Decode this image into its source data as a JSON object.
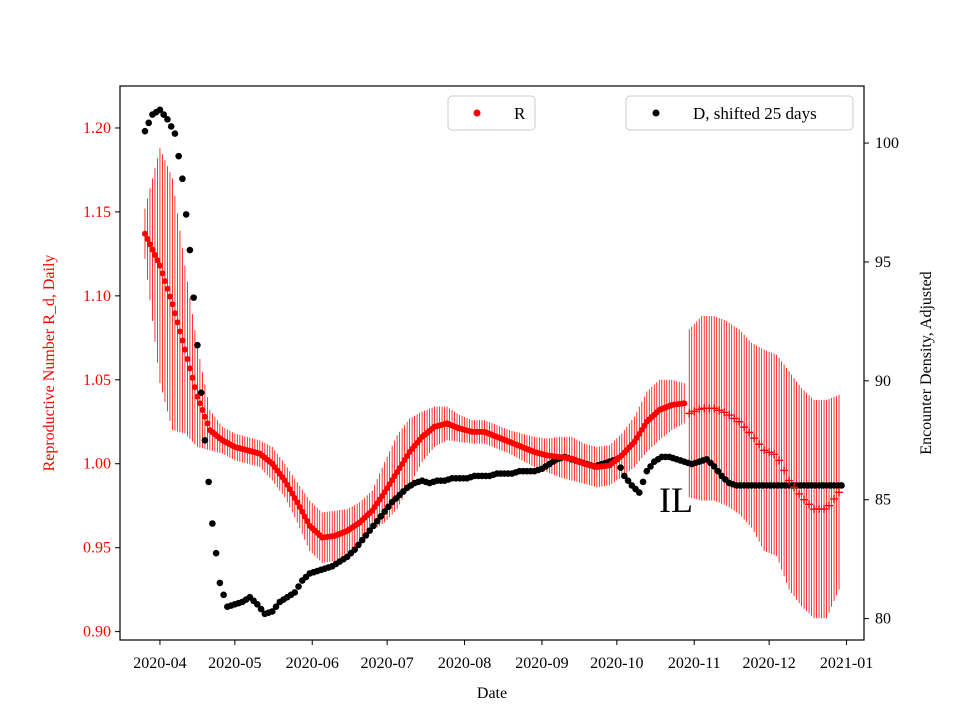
{
  "chart_data": {
    "type": "scatter",
    "xlabel": "Date",
    "ylabel_left": "Reproductive Number R_d, Daily",
    "ylabel_right": "Encounter Density, Adjusted",
    "annotation": "IL",
    "x_range": [
      "2020-03-16",
      "2021-01-08"
    ],
    "ylim_left": [
      0.895,
      1.225
    ],
    "ylim_right": [
      79.1,
      102.4
    ],
    "x_ticks": [
      "2020-04",
      "2020-05",
      "2020-06",
      "2020-07",
      "2020-08",
      "2020-09",
      "2020-10",
      "2020-11",
      "2020-12",
      "2021-01"
    ],
    "y_ticks_left": [
      "0.90",
      "0.95",
      "1.00",
      "1.05",
      "1.10",
      "1.15",
      "1.20"
    ],
    "y_ticks_right": [
      "80",
      "85",
      "90",
      "95",
      "100"
    ],
    "colors": {
      "R": "#ff0000",
      "D": "#000000"
    },
    "series": [
      {
        "name": "R",
        "axis": "left",
        "marker": "dot",
        "points": [
          [
            "2020-03-26",
            1.137,
            0.015
          ],
          [
            "2020-04-01",
            1.118,
            0.07
          ],
          [
            "2020-04-06",
            1.095,
            0.075
          ],
          [
            "2020-04-11",
            1.068,
            0.05
          ],
          [
            "2020-04-16",
            1.04,
            0.03
          ],
          [
            "2020-04-21",
            1.02,
            0.012
          ],
          [
            "2020-04-26",
            1.014,
            0.008
          ],
          [
            "2020-05-01",
            1.01,
            0.008
          ],
          [
            "2020-05-06",
            1.008,
            0.008
          ],
          [
            "2020-05-11",
            1.006,
            0.008
          ],
          [
            "2020-05-16",
            1.0,
            0.01
          ],
          [
            "2020-05-21",
            0.99,
            0.01
          ],
          [
            "2020-05-26",
            0.977,
            0.012
          ],
          [
            "2020-05-31",
            0.963,
            0.015
          ],
          [
            "2020-06-05",
            0.956,
            0.015
          ],
          [
            "2020-06-10",
            0.957,
            0.015
          ],
          [
            "2020-06-15",
            0.96,
            0.013
          ],
          [
            "2020-06-20",
            0.965,
            0.012
          ],
          [
            "2020-06-25",
            0.972,
            0.012
          ],
          [
            "2020-06-30",
            0.983,
            0.018
          ],
          [
            "2020-07-05",
            0.995,
            0.022
          ],
          [
            "2020-07-10",
            1.007,
            0.02
          ],
          [
            "2020-07-15",
            1.016,
            0.015
          ],
          [
            "2020-07-20",
            1.022,
            0.012
          ],
          [
            "2020-07-25",
            1.024,
            0.01
          ],
          [
            "2020-07-30",
            1.021,
            0.008
          ],
          [
            "2020-08-04",
            1.019,
            0.007
          ],
          [
            "2020-08-09",
            1.019,
            0.007
          ],
          [
            "2020-08-14",
            1.016,
            0.007
          ],
          [
            "2020-08-19",
            1.013,
            0.007
          ],
          [
            "2020-08-24",
            1.01,
            0.008
          ],
          [
            "2020-08-29",
            1.007,
            0.009
          ],
          [
            "2020-09-03",
            1.005,
            0.01
          ],
          [
            "2020-09-08",
            1.004,
            0.012
          ],
          [
            "2020-09-13",
            1.003,
            0.013
          ],
          [
            "2020-09-18",
            1.0,
            0.012
          ],
          [
            "2020-09-23",
            0.998,
            0.012
          ],
          [
            "2020-09-28",
            0.999,
            0.012
          ],
          [
            "2020-10-03",
            1.005,
            0.013
          ],
          [
            "2020-10-08",
            1.013,
            0.015
          ],
          [
            "2020-10-13",
            1.025,
            0.018
          ],
          [
            "2020-10-18",
            1.032,
            0.018
          ],
          [
            "2020-10-23",
            1.035,
            0.015
          ],
          [
            "2020-10-28",
            1.036,
            0.012
          ]
        ]
      },
      {
        "name": "R",
        "axis": "left",
        "marker": "plus",
        "points": [
          [
            "2020-10-30",
            1.03,
            0.05
          ],
          [
            "2020-11-04",
            1.033,
            0.055
          ],
          [
            "2020-11-09",
            1.033,
            0.055
          ],
          [
            "2020-11-14",
            1.03,
            0.055
          ],
          [
            "2020-11-19",
            1.025,
            0.055
          ],
          [
            "2020-11-24",
            1.017,
            0.055
          ],
          [
            "2020-11-29",
            1.008,
            0.06
          ],
          [
            "2020-12-04",
            1.005,
            0.06
          ],
          [
            "2020-12-09",
            0.99,
            0.065
          ],
          [
            "2020-12-14",
            0.98,
            0.065
          ],
          [
            "2020-12-19",
            0.973,
            0.065
          ],
          [
            "2020-12-24",
            0.973,
            0.065
          ],
          [
            "2020-12-29",
            0.983,
            0.058
          ]
        ]
      },
      {
        "name": "D, shifted 25 days",
        "axis": "right",
        "marker": "dot",
        "points": [
          [
            "2020-03-26",
            100.5
          ],
          [
            "2020-03-29",
            101.2
          ],
          [
            "2020-04-01",
            101.4
          ],
          [
            "2020-04-04",
            101.0
          ],
          [
            "2020-04-07",
            100.4
          ],
          [
            "2020-04-10",
            98.5
          ],
          [
            "2020-04-13",
            95.5
          ],
          [
            "2020-04-16",
            91.5
          ],
          [
            "2020-04-19",
            87.5
          ],
          [
            "2020-04-22",
            84.0
          ],
          [
            "2020-04-25",
            81.5
          ],
          [
            "2020-04-28",
            80.5
          ],
          [
            "2020-05-01",
            80.6
          ],
          [
            "2020-05-04",
            80.7
          ],
          [
            "2020-05-07",
            80.9
          ],
          [
            "2020-05-10",
            80.6
          ],
          [
            "2020-05-13",
            80.2
          ],
          [
            "2020-05-16",
            80.3
          ],
          [
            "2020-05-19",
            80.7
          ],
          [
            "2020-05-22",
            80.9
          ],
          [
            "2020-05-25",
            81.1
          ],
          [
            "2020-05-28",
            81.6
          ],
          [
            "2020-05-31",
            81.9
          ],
          [
            "2020-06-03",
            82.0
          ],
          [
            "2020-06-06",
            82.1
          ],
          [
            "2020-06-09",
            82.2
          ],
          [
            "2020-06-12",
            82.4
          ],
          [
            "2020-06-15",
            82.6
          ],
          [
            "2020-06-18",
            82.9
          ],
          [
            "2020-06-21",
            83.3
          ],
          [
            "2020-06-24",
            83.7
          ],
          [
            "2020-06-27",
            84.1
          ],
          [
            "2020-06-30",
            84.5
          ],
          [
            "2020-07-03",
            84.9
          ],
          [
            "2020-07-06",
            85.2
          ],
          [
            "2020-07-09",
            85.5
          ],
          [
            "2020-07-12",
            85.7
          ],
          [
            "2020-07-15",
            85.8
          ],
          [
            "2020-07-18",
            85.7
          ],
          [
            "2020-07-21",
            85.8
          ],
          [
            "2020-07-24",
            85.8
          ],
          [
            "2020-07-27",
            85.9
          ],
          [
            "2020-07-30",
            85.9
          ],
          [
            "2020-08-02",
            85.9
          ],
          [
            "2020-08-05",
            86.0
          ],
          [
            "2020-08-08",
            86.0
          ],
          [
            "2020-08-11",
            86.0
          ],
          [
            "2020-08-14",
            86.1
          ],
          [
            "2020-08-17",
            86.1
          ],
          [
            "2020-08-20",
            86.1
          ],
          [
            "2020-08-23",
            86.2
          ],
          [
            "2020-08-26",
            86.2
          ],
          [
            "2020-08-29",
            86.2
          ],
          [
            "2020-09-01",
            86.3
          ],
          [
            "2020-09-04",
            86.5
          ],
          [
            "2020-09-07",
            86.7
          ],
          [
            "2020-09-10",
            86.8
          ],
          [
            "2020-09-13",
            86.7
          ],
          [
            "2020-09-16",
            86.6
          ],
          [
            "2020-09-19",
            86.5
          ],
          [
            "2020-09-22",
            86.4
          ],
          [
            "2020-09-25",
            86.5
          ],
          [
            "2020-09-28",
            86.6
          ],
          [
            "2020-10-01",
            86.7
          ],
          [
            "2020-10-04",
            86.0
          ],
          [
            "2020-10-07",
            85.6
          ],
          [
            "2020-10-10",
            85.3
          ],
          [
            "2020-10-13",
            86.2
          ],
          [
            "2020-10-16",
            86.6
          ],
          [
            "2020-10-19",
            86.8
          ],
          [
            "2020-10-22",
            86.8
          ],
          [
            "2020-10-25",
            86.7
          ],
          [
            "2020-10-28",
            86.6
          ],
          [
            "2020-10-31",
            86.5
          ],
          [
            "2020-11-03",
            86.6
          ],
          [
            "2020-11-06",
            86.7
          ],
          [
            "2020-11-09",
            86.4
          ],
          [
            "2020-11-12",
            86.0
          ],
          [
            "2020-11-15",
            85.7
          ],
          [
            "2020-11-18",
            85.6
          ],
          [
            "2020-11-23",
            85.6
          ],
          [
            "2020-11-28",
            85.6
          ],
          [
            "2020-12-03",
            85.6
          ],
          [
            "2020-12-08",
            85.6
          ],
          [
            "2020-12-13",
            85.6
          ],
          [
            "2020-12-18",
            85.6
          ],
          [
            "2020-12-23",
            85.6
          ],
          [
            "2020-12-28",
            85.6
          ],
          [
            "2020-12-31",
            85.6
          ]
        ]
      }
    ],
    "legend": [
      {
        "label": "R",
        "color": "#ff0000",
        "position": "top-center"
      },
      {
        "label": "D, shifted 25 days",
        "color": "#000000",
        "position": "top-right"
      }
    ]
  }
}
